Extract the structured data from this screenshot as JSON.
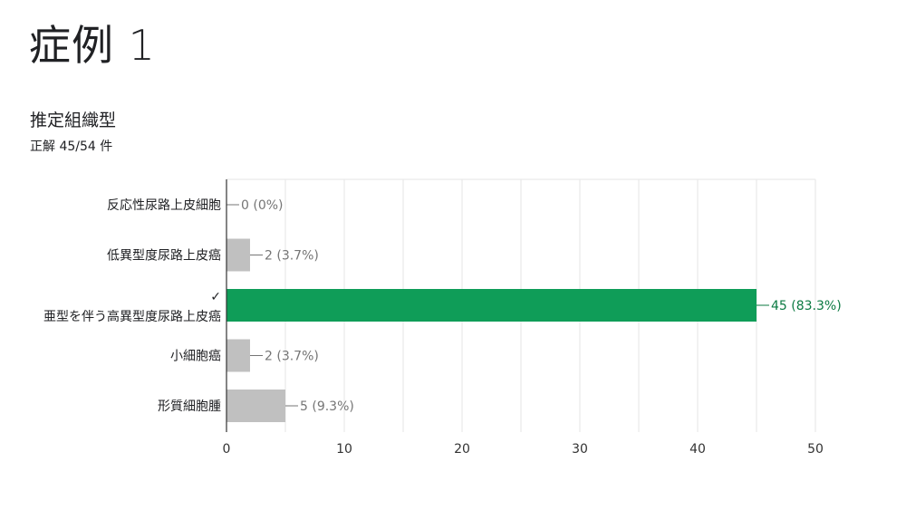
{
  "slide": {
    "title": "症例 1"
  },
  "question": {
    "title": "推定組織型",
    "score": "正解 45/54 件"
  },
  "chart_data": {
    "type": "bar",
    "orientation": "horizontal",
    "title": "",
    "xlabel": "",
    "ylabel": "",
    "xlim": [
      0,
      50
    ],
    "x_ticks": [
      0,
      10,
      20,
      30,
      40,
      50
    ],
    "grid": true,
    "categories": [
      "反応性尿路上皮細胞",
      "低異型度尿路上皮癌",
      "亜型を伴う高異型度尿路上皮癌",
      "小細胞癌",
      "形質細胞腫"
    ],
    "values": [
      0,
      2,
      45,
      2,
      5
    ],
    "data_labels": [
      "0 (0%)",
      "2 (3.7%)",
      "45 (83.3%)",
      "2 (3.7%)",
      "5 (9.3%)"
    ],
    "correct": [
      false,
      false,
      true,
      false,
      false
    ],
    "correct_mark": "✓",
    "colors": {
      "default_bar": "#c0c0c0",
      "correct_bar": "#0f9d58",
      "default_label": "#757575",
      "correct_label": "#0b7a42",
      "grid": "#e6e6e6",
      "axis": "#333333"
    }
  }
}
